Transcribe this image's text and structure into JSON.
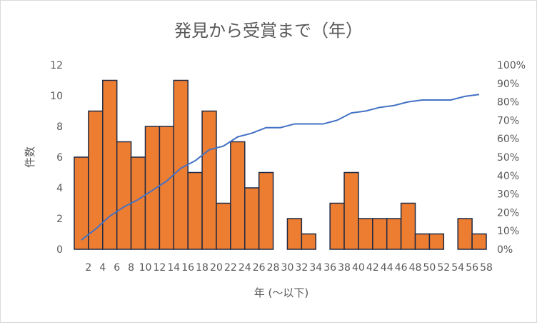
{
  "chart_data": {
    "type": "bar",
    "title": "発見から受賞まで（年）",
    "xlabel": "年 (〜以下)",
    "ylabel": "件数",
    "ylim": [
      0,
      12
    ],
    "yticks": [
      "0",
      "2",
      "4",
      "6",
      "8",
      "10",
      "12"
    ],
    "y2lim": [
      0,
      1
    ],
    "y2ticks": [
      "0%",
      "10%",
      "20%",
      "30%",
      "40%",
      "50%",
      "60%",
      "70%",
      "80%",
      "90%",
      "100%"
    ],
    "categories": [
      "2",
      "4",
      "6",
      "8",
      "10",
      "12",
      "14",
      "16",
      "18",
      "20",
      "22",
      "24",
      "26",
      "28",
      "30",
      "32",
      "34",
      "36",
      "38",
      "40",
      "42",
      "44",
      "46",
      "48",
      "50",
      "52",
      "54",
      "56",
      "58"
    ],
    "bar_edges": [
      1,
      3,
      5,
      7,
      9,
      11,
      13,
      15,
      17,
      19,
      21,
      23,
      25,
      27,
      29,
      31,
      33,
      35,
      37,
      39,
      41,
      43,
      45,
      47,
      49,
      51,
      53,
      55,
      57,
      59
    ],
    "series": [
      {
        "type": "bar",
        "values": [
          6,
          9,
          11,
          7,
          6,
          8,
          8,
          11,
          5,
          9,
          3,
          7,
          4,
          5,
          0,
          2,
          1,
          0,
          3,
          5,
          2,
          2,
          2,
          3,
          1,
          1,
          0,
          2,
          1
        ]
      },
      {
        "type": "line",
        "axis": "secondary",
        "values": [
          0.05,
          0.11,
          0.18,
          0.23,
          0.27,
          0.32,
          0.37,
          0.44,
          0.48,
          0.54,
          0.56,
          0.61,
          0.63,
          0.66,
          0.66,
          0.68,
          0.68,
          0.68,
          0.7,
          0.74,
          0.75,
          0.77,
          0.78,
          0.8,
          0.81,
          0.81,
          0.81,
          0.83,
          0.84
        ]
      }
    ],
    "colors": {
      "bar_fill": "#ed7d31",
      "bar_edge": "#1f2a44",
      "line": "#4472c4"
    },
    "legend": "none",
    "grid": false
  }
}
